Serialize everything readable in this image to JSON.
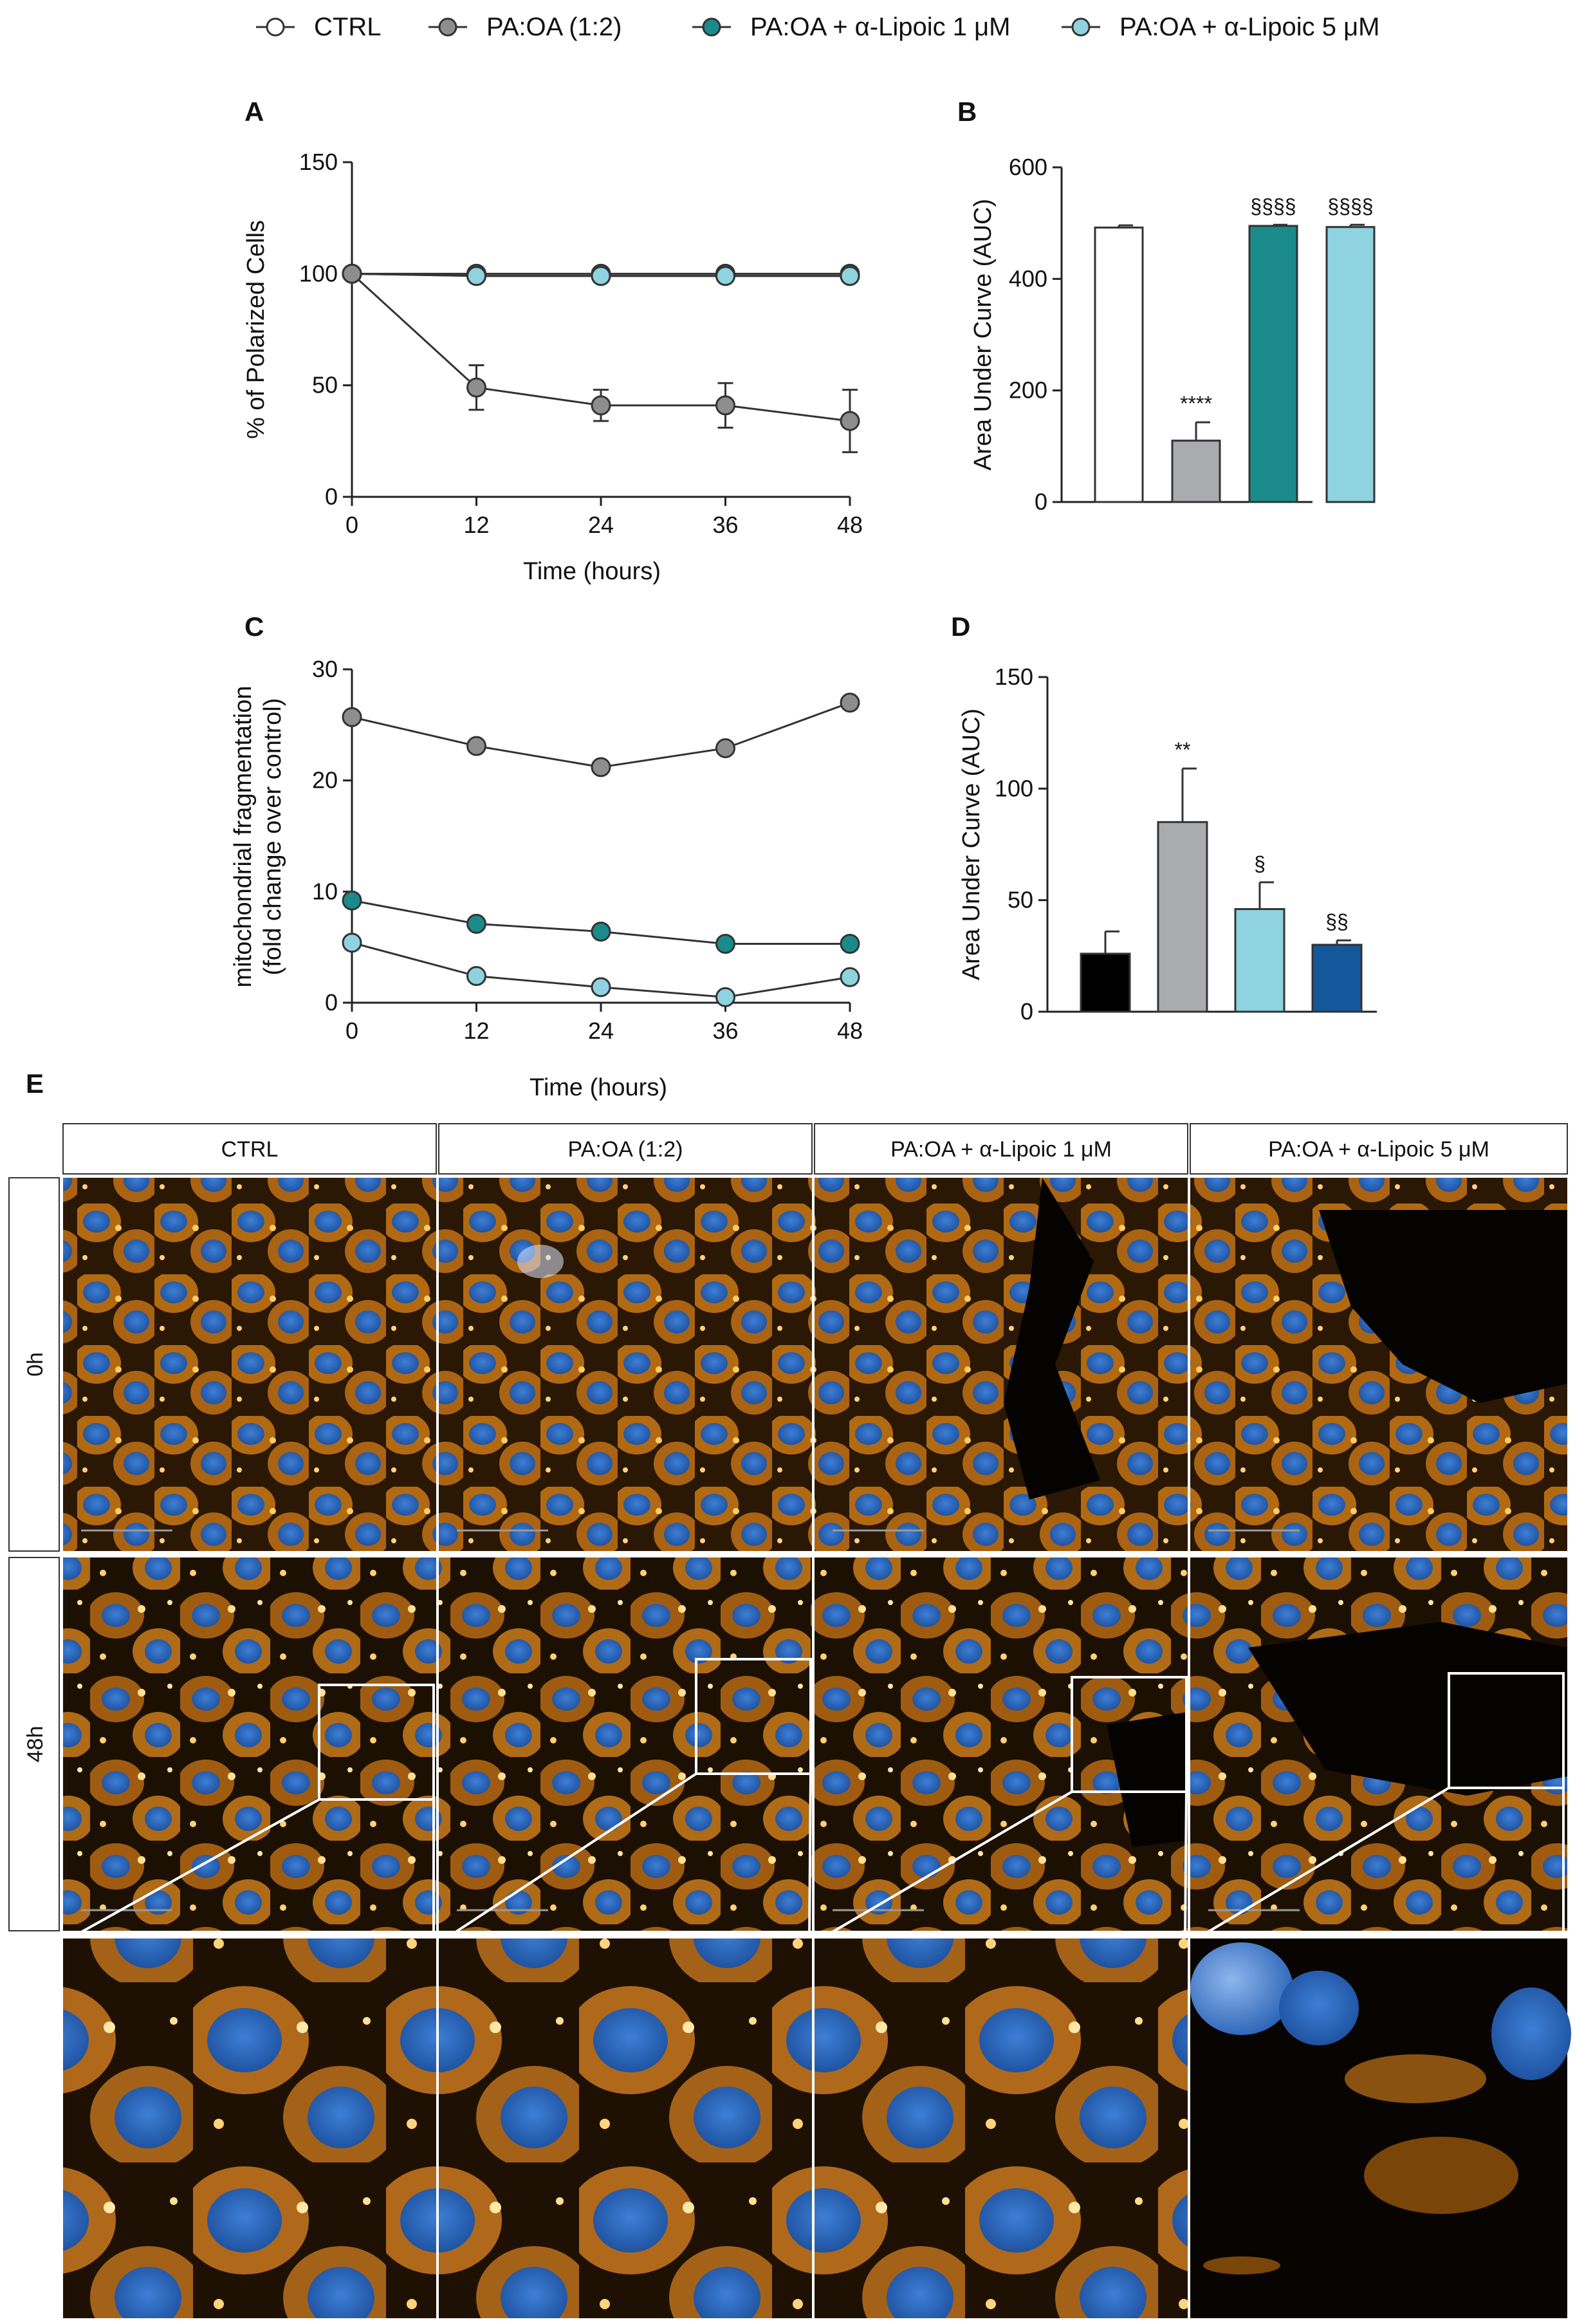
{
  "colors": {
    "ctrl": "#ffffff",
    "pa_oa_line": "#8e8e8e",
    "pa_oa_bar": "#a9abae",
    "lipoic_1": "#1a8a8a",
    "lipoic_5": "#8fd3e0",
    "black_bar": "#000000",
    "dark_blue_bar": "#14579a"
  },
  "legend": [
    {
      "label": "CTRL",
      "color_key": "ctrl"
    },
    {
      "label": "PA:OA (1:2)",
      "color_key": "pa_oa_line"
    },
    {
      "label": "PA:OA + α-Lipoic 1 μM",
      "color_key": "lipoic_1"
    },
    {
      "label": "PA:OA + α-Lipoic 5 μM",
      "color_key": "lipoic_5"
    }
  ],
  "chart_data": [
    {
      "panel": "A",
      "type": "line",
      "xlabel": "Time (hours)",
      "ylabel": "% of Polarized Cells",
      "x": [
        0,
        12,
        24,
        36,
        48
      ],
      "xlim": [
        0,
        48
      ],
      "ylim": [
        0,
        150
      ],
      "xticks": [
        "0",
        "12",
        "24",
        "36",
        "48"
      ],
      "yticks": [
        "0",
        "50",
        "100",
        "150"
      ],
      "series": [
        {
          "name": "CTRL",
          "color_key": "ctrl",
          "values": [
            100,
            99,
            99,
            99,
            99
          ],
          "errors": [
            0,
            1,
            1,
            1,
            1
          ]
        },
        {
          "name": "PA:OA + α-Lipoic 1 μM",
          "color_key": "lipoic_1",
          "values": [
            100,
            100,
            100,
            100,
            100
          ],
          "errors": [
            0,
            0,
            0,
            0,
            0
          ]
        },
        {
          "name": "PA:OA + α-Lipoic 5 μM",
          "color_key": "lipoic_5",
          "values": [
            100,
            99,
            99,
            99,
            99
          ],
          "errors": [
            0,
            0,
            0,
            0,
            0
          ]
        },
        {
          "name": "PA:OA (1:2)",
          "color_key": "pa_oa_line",
          "values": [
            100,
            49,
            41,
            41,
            34
          ],
          "errors": [
            0,
            10,
            7,
            10,
            14
          ]
        }
      ]
    },
    {
      "panel": "B",
      "type": "bar",
      "ylabel": "Area Under Curve (AUC)",
      "ylim": [
        0,
        600
      ],
      "yticks": [
        "0",
        "200",
        "400",
        "600"
      ],
      "categories": [
        "CTRL",
        "PA:OA (1:2)",
        "PA:OA + α-Lipoic 1 μM",
        "PA:OA + α-Lipoic 5 μM"
      ],
      "values": [
        492,
        110,
        495,
        493
      ],
      "errors": [
        4,
        33,
        2,
        4
      ],
      "color_keys": [
        "ctrl",
        "pa_oa_bar",
        "lipoic_1",
        "lipoic_5"
      ],
      "annotations": [
        "",
        "****",
        "§§§§",
        "§§§§"
      ]
    },
    {
      "panel": "C",
      "type": "line",
      "xlabel": "Time (hours)",
      "ylabel": [
        "mitochondrial fragmentation",
        "(fold change over control)"
      ],
      "x": [
        0,
        12,
        24,
        36,
        48
      ],
      "xlim": [
        0,
        48
      ],
      "ylim": [
        0,
        30
      ],
      "xticks": [
        "0",
        "12",
        "24",
        "36",
        "48"
      ],
      "yticks": [
        "0",
        "10",
        "20",
        "30"
      ],
      "series": [
        {
          "name": "PA:OA (1:2)",
          "color_key": "pa_oa_line",
          "values": [
            25.7,
            23.1,
            21.2,
            22.9,
            27.0
          ]
        },
        {
          "name": "PA:OA + α-Lipoic 1 μM",
          "color_key": "lipoic_1",
          "values": [
            9.2,
            7.1,
            6.4,
            5.3,
            5.3
          ]
        },
        {
          "name": "PA:OA + α-Lipoic 5 μM",
          "color_key": "lipoic_5",
          "values": [
            5.4,
            2.4,
            1.4,
            0.5,
            2.3
          ]
        }
      ]
    },
    {
      "panel": "D",
      "type": "bar",
      "ylabel": "Area Under Curve (AUC)",
      "ylim": [
        0,
        150
      ],
      "yticks": [
        "0",
        "50",
        "100",
        "150"
      ],
      "values": [
        26,
        85,
        46,
        30
      ],
      "errors": [
        10,
        24,
        12,
        2
      ],
      "color_keys": [
        "black_bar",
        "pa_oa_bar",
        "lipoic_5",
        "dark_blue_bar"
      ],
      "annotations": [
        "",
        "**",
        "§",
        "§§"
      ]
    }
  ],
  "panel_e": {
    "letter": "E",
    "columns": [
      "CTRL",
      "PA:OA (1:2)",
      "PA:OA + α-Lipoic 1 μM",
      "PA:OA + α-Lipoic 5 μM"
    ],
    "rows": [
      "0h",
      "48h"
    ]
  }
}
